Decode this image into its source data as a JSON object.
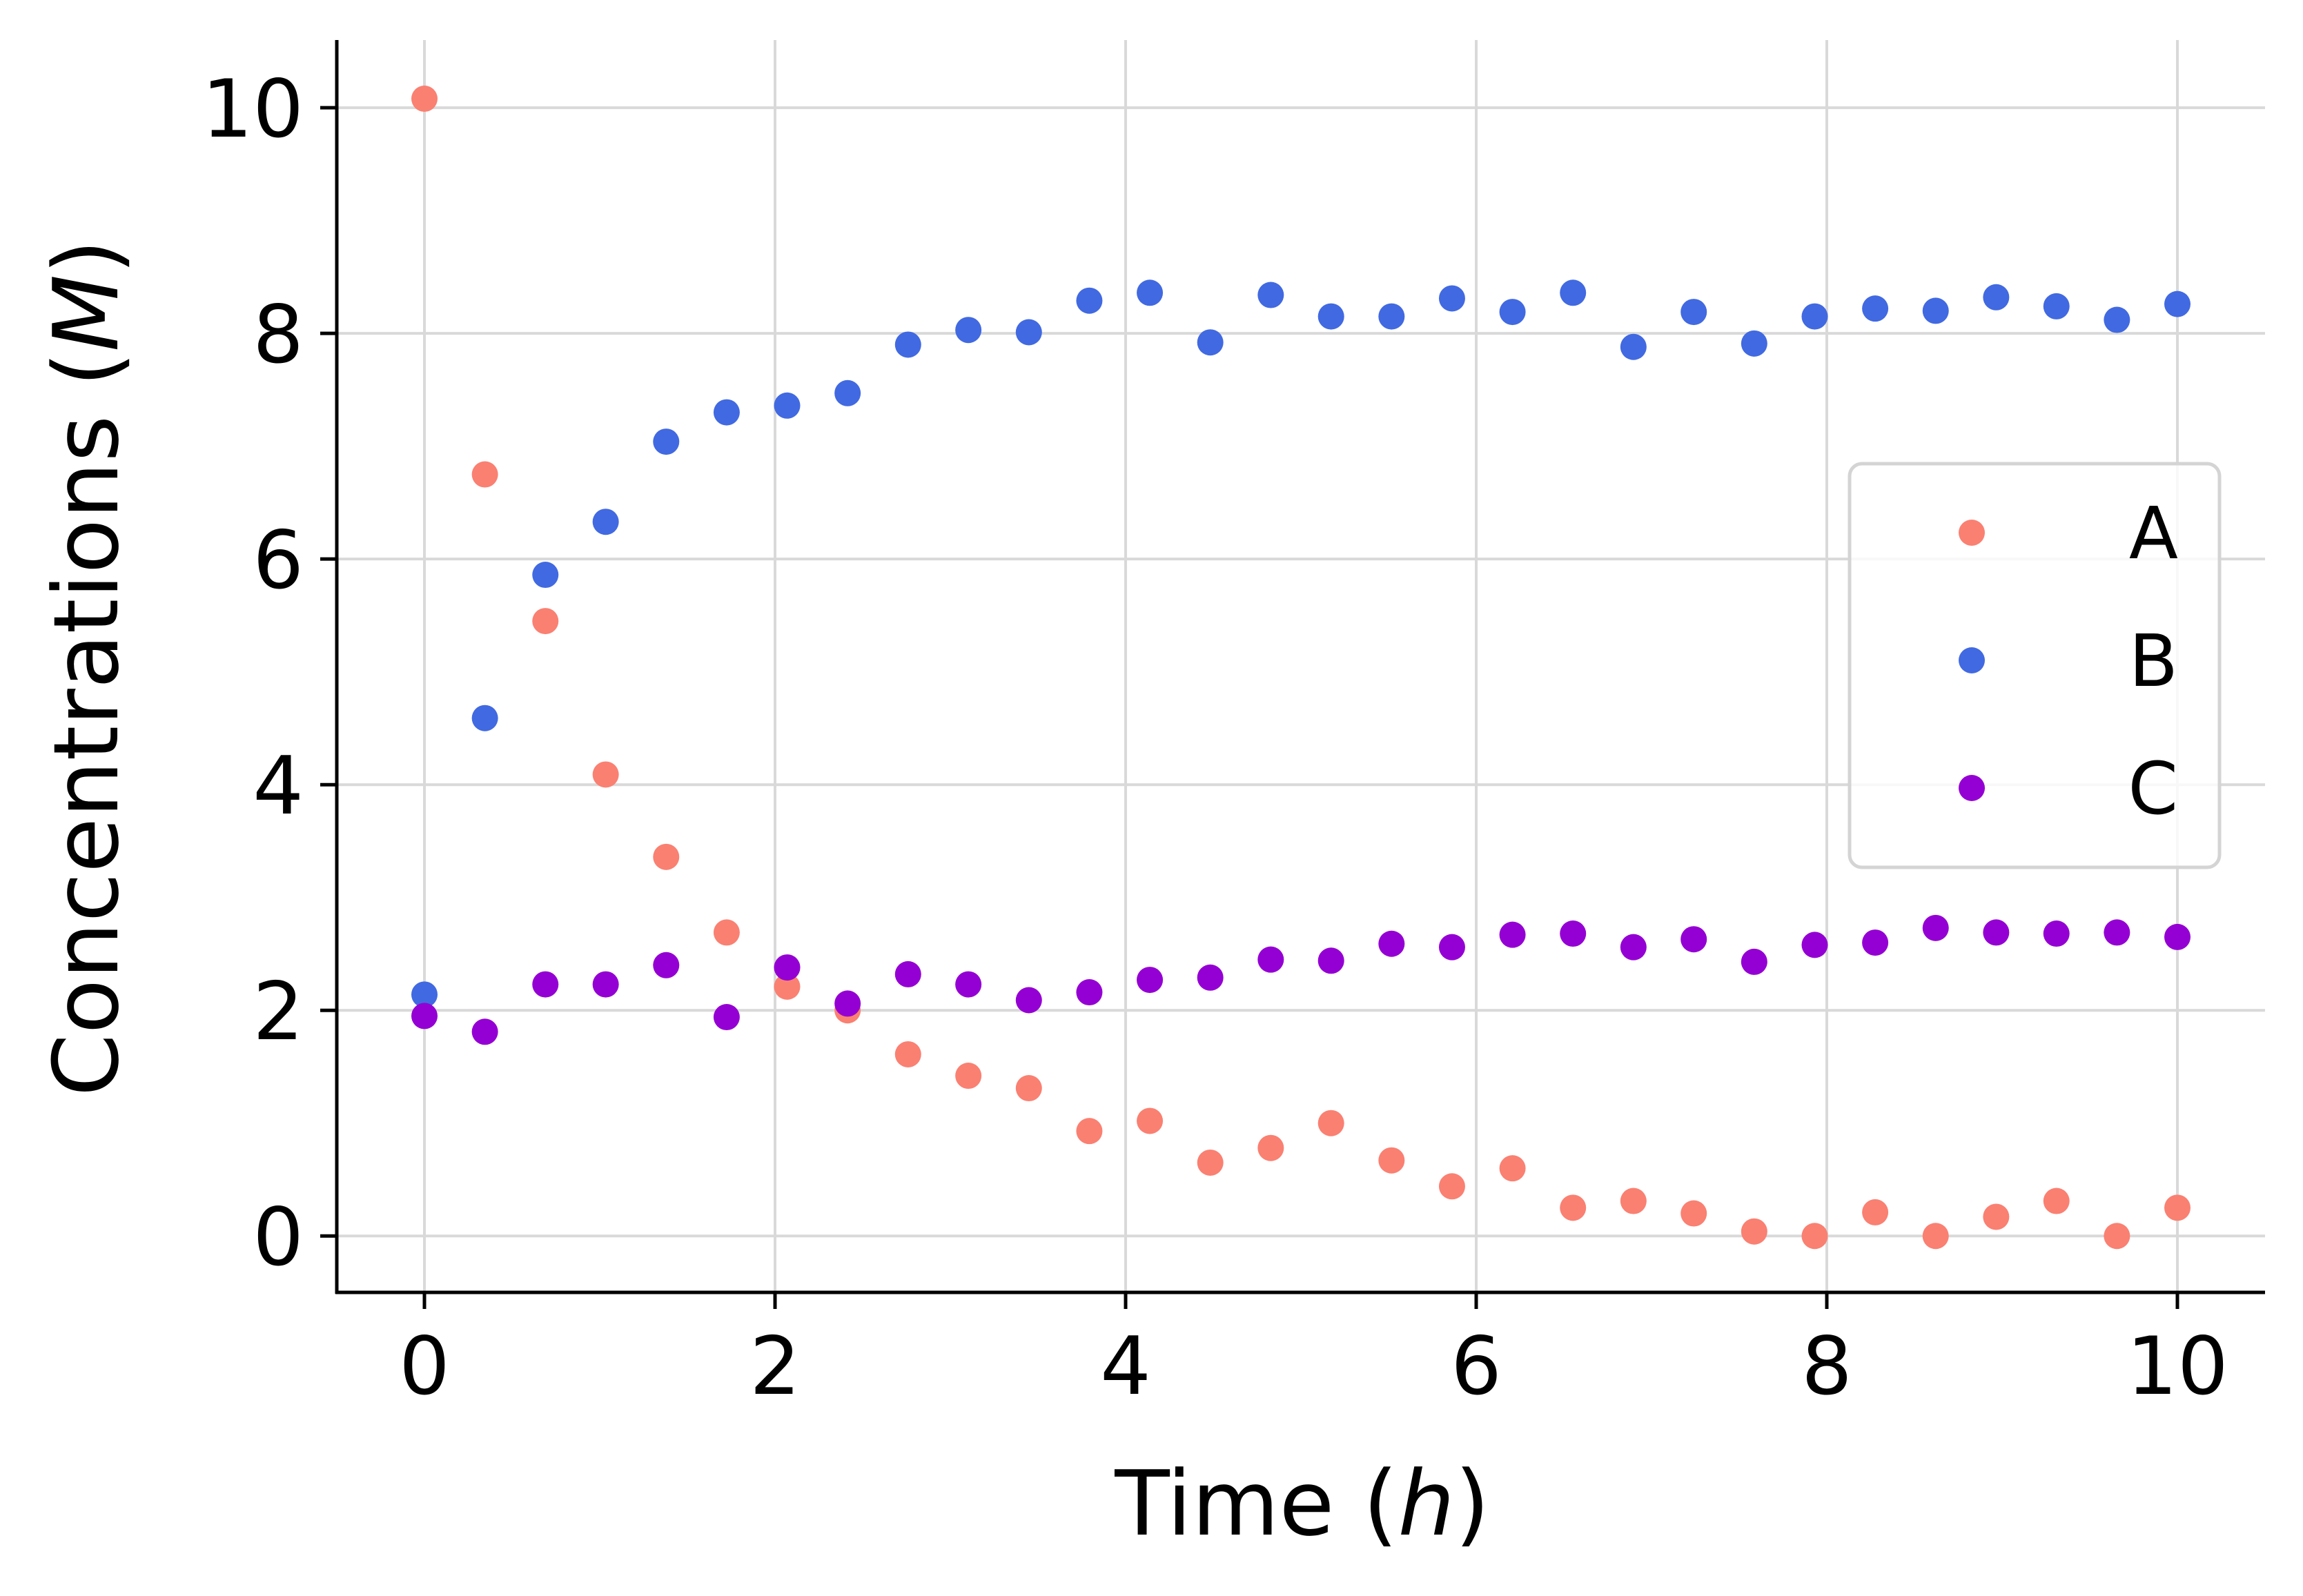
{
  "chart_data": {
    "type": "scatter",
    "title": "",
    "xlabel": "Time",
    "xlabel_unit": "h",
    "ylabel": "Concentrations",
    "ylabel_unit": "M",
    "xlim": [
      -0.5,
      10.5
    ],
    "ylim": [
      -0.5,
      10.6
    ],
    "xticks": [
      0,
      2,
      4,
      6,
      8,
      10
    ],
    "yticks": [
      0,
      2,
      4,
      6,
      8,
      10
    ],
    "grid": true,
    "legend_position": "center-right",
    "x": [
      0,
      0.345,
      0.69,
      1.034,
      1.379,
      1.724,
      2.069,
      2.414,
      2.759,
      3.103,
      3.448,
      3.793,
      4.138,
      4.483,
      4.828,
      5.172,
      5.517,
      5.862,
      6.207,
      6.552,
      6.897,
      7.241,
      7.586,
      7.931,
      8.276,
      8.621,
      8.966,
      9.31,
      9.655,
      10
    ],
    "series": [
      {
        "name": "A",
        "color": "#FA8072",
        "values": [
          10.08,
          6.75,
          5.45,
          4.09,
          3.36,
          2.69,
          2.21,
          2.0,
          1.61,
          1.42,
          1.31,
          0.93,
          1.02,
          0.65,
          0.78,
          1.0,
          0.67,
          0.44,
          0.6,
          0.25,
          0.31,
          0.2,
          0.04,
          0.0,
          0.21,
          0.0,
          0.17,
          0.31,
          0.0,
          0.25
        ]
      },
      {
        "name": "B",
        "color": "#4169E1",
        "values": [
          2.14,
          4.59,
          5.86,
          6.33,
          7.04,
          7.3,
          7.36,
          7.47,
          7.9,
          8.03,
          8.01,
          8.29,
          8.36,
          7.92,
          8.34,
          8.15,
          8.15,
          8.31,
          8.19,
          8.36,
          7.88,
          8.19,
          7.91,
          8.15,
          8.22,
          8.2,
          8.32,
          8.24,
          8.12,
          8.26
        ]
      },
      {
        "name": "C",
        "color": "#9400D3",
        "values": [
          1.95,
          1.81,
          2.23,
          2.23,
          2.4,
          1.94,
          2.38,
          2.06,
          2.32,
          2.23,
          2.09,
          2.16,
          2.27,
          2.29,
          2.45,
          2.44,
          2.59,
          2.56,
          2.67,
          2.68,
          2.56,
          2.63,
          2.43,
          2.58,
          2.6,
          2.73,
          2.69,
          2.68,
          2.69,
          2.65
        ]
      }
    ]
  }
}
